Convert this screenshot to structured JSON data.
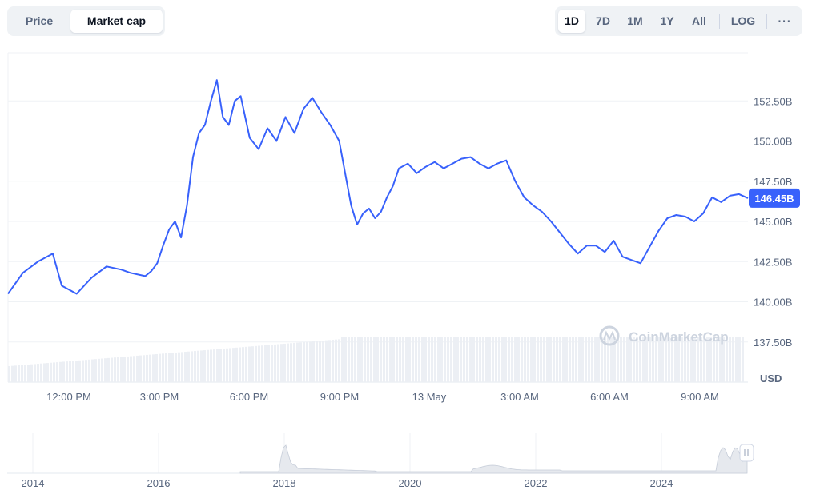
{
  "tabs": [
    {
      "label": "Price",
      "active": false
    },
    {
      "label": "Market cap",
      "active": true
    }
  ],
  "ranges": [
    {
      "label": "1D",
      "active": true
    },
    {
      "label": "7D",
      "active": false
    },
    {
      "label": "1M",
      "active": false
    },
    {
      "label": "1Y",
      "active": false
    },
    {
      "label": "All",
      "active": false
    },
    {
      "label": "LOG",
      "active": false
    }
  ],
  "more_icon": "ellipsis-icon",
  "watermark": "CoinMarketCap",
  "colors": {
    "line": "#3861fb",
    "grid": "#eff2f5",
    "text": "#58667e",
    "volume": "#e3e8ef",
    "badge": "#3861fb"
  },
  "chart_data": [
    {
      "type": "line",
      "title": "",
      "ylabel": "",
      "y_unit_label": "USD",
      "ylim": [
        135000000000,
        155500000000
      ],
      "y_ticks": [
        {
          "value": 137500000000,
          "label": "137.50B"
        },
        {
          "value": 140000000000,
          "label": "140.00B"
        },
        {
          "value": 142500000000,
          "label": "142.50B"
        },
        {
          "value": 145000000000,
          "label": "145.00B"
        },
        {
          "value": 147500000000,
          "label": "147.50B"
        },
        {
          "value": 150000000000,
          "label": "150.00B"
        },
        {
          "value": 152500000000,
          "label": "152.50B"
        }
      ],
      "x_ticks": [
        "12:00 PM",
        "3:00 PM",
        "6:00 PM",
        "9:00 PM",
        "13 May",
        "3:00 AM",
        "6:00 AM",
        "9:00 AM"
      ],
      "x_hours": [
        9.9,
        10.4,
        10.9,
        11.4,
        11.7,
        12.2,
        12.7,
        13.2,
        13.7,
        14.0,
        14.5,
        14.7,
        14.9,
        15.1,
        15.3,
        15.5,
        15.7,
        15.9,
        16.1,
        16.3,
        16.5,
        16.7,
        16.9,
        17.1,
        17.3,
        17.5,
        17.7,
        18.0,
        18.3,
        18.6,
        18.9,
        19.2,
        19.5,
        19.8,
        20.1,
        20.4,
        20.7,
        21.0,
        21.2,
        21.4,
        21.6,
        21.8,
        22.0,
        22.2,
        22.4,
        22.6,
        22.8,
        23.0,
        23.3,
        23.6,
        23.9,
        24.2,
        24.5,
        24.8,
        25.1,
        25.4,
        25.7,
        26.0,
        26.3,
        26.6,
        26.9,
        27.2,
        27.5,
        27.8,
        28.1,
        28.4,
        28.7,
        29.0,
        29.3,
        29.6,
        29.9,
        30.2,
        30.5,
        30.8,
        31.1,
        31.4,
        31.7,
        32.0,
        32.3,
        32.6,
        32.9,
        33.2,
        33.5,
        33.8,
        34.1,
        34.4,
        34.7
      ],
      "series": [
        {
          "values": [
            140.5,
            141.8,
            142.5,
            143.0,
            141.0,
            140.5,
            141.5,
            142.2,
            142.0,
            141.8,
            141.6,
            141.9,
            142.4,
            143.5,
            144.5,
            145.0,
            144.0,
            146.0,
            149.0,
            150.5,
            151.0,
            152.5,
            153.8,
            151.5,
            151.0,
            152.5,
            152.8,
            150.2,
            149.5,
            150.8,
            150.0,
            151.5,
            150.5,
            152.0,
            152.7,
            151.8,
            151.0,
            150.0,
            148.0,
            146.0,
            144.8,
            145.5,
            145.8,
            145.2,
            145.6,
            146.5,
            147.2,
            148.3,
            148.6,
            148.0,
            148.4,
            148.7,
            148.3,
            148.6,
            148.9,
            149.0,
            148.6,
            148.3,
            148.6,
            148.8,
            147.5,
            146.5,
            146.0,
            145.6,
            145.0,
            144.3,
            143.6,
            143.0,
            143.5,
            143.5,
            143.1,
            143.8,
            142.8,
            142.6,
            142.4,
            143.4,
            144.4,
            145.2,
            145.4,
            145.3,
            145.0,
            145.5,
            146.5,
            146.2,
            146.6,
            146.7,
            146.45
          ],
          "unit": "B USD"
        }
      ],
      "current_value_label": "146.45B"
    },
    {
      "type": "area",
      "x_ticks": [
        "2014",
        "2016",
        "2018",
        "2020",
        "2022",
        "2024"
      ]
    }
  ]
}
